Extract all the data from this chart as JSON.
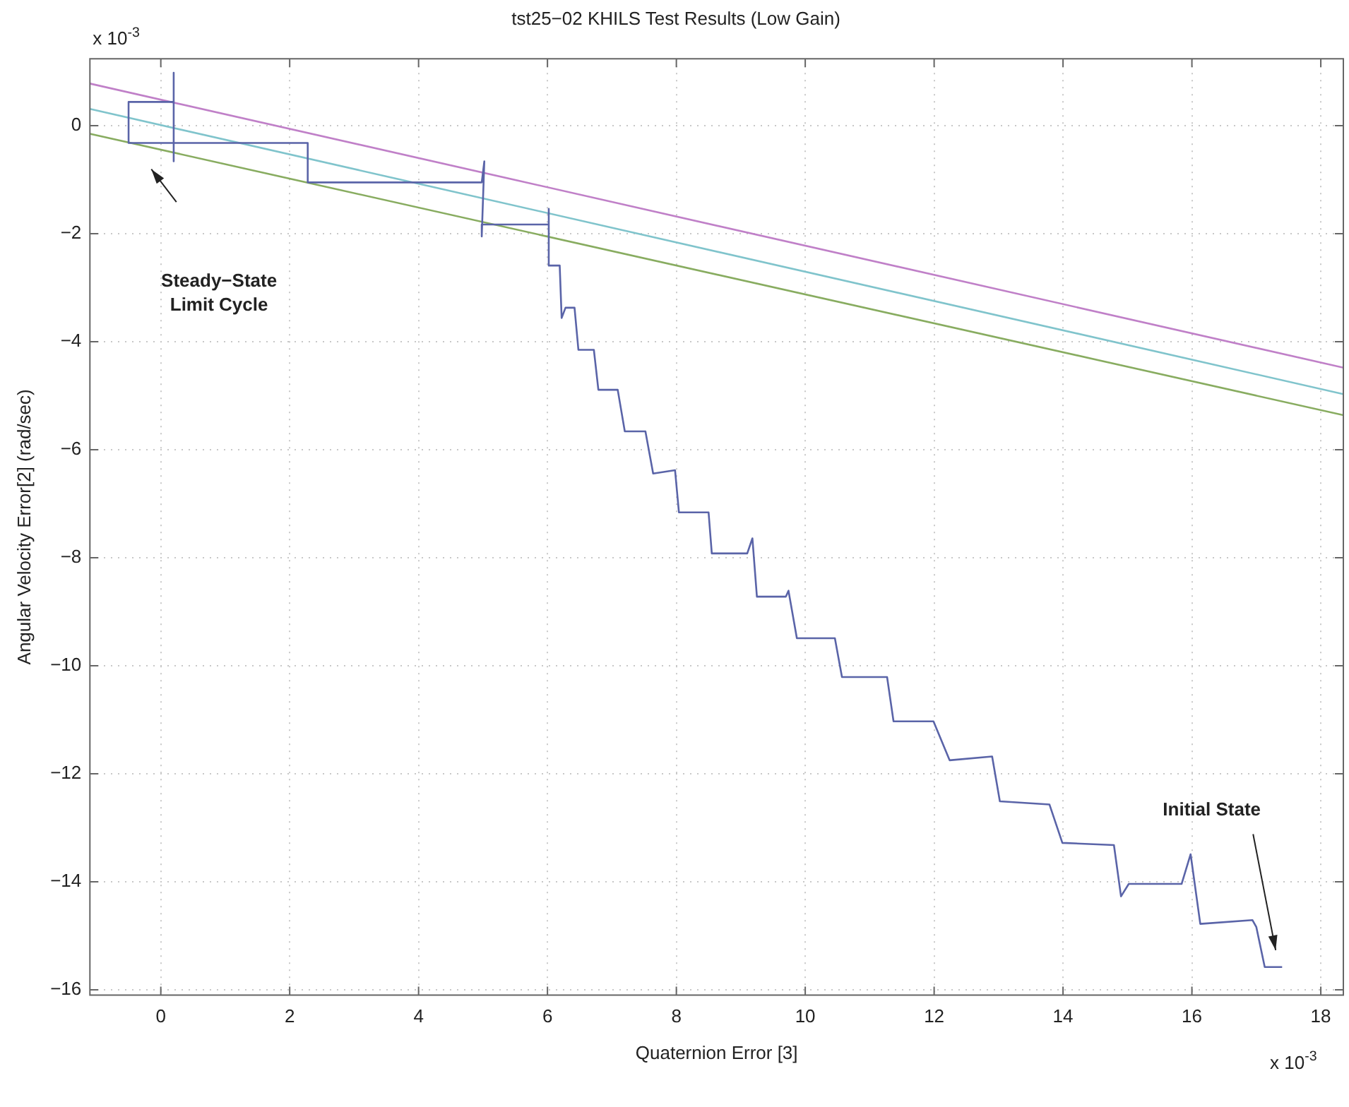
{
  "chart_data": {
    "type": "line",
    "title": "tst25−02 KHILS Test Results (Low Gain)",
    "xlabel": "Quaternion Error [3]",
    "ylabel": "Angular Velocity Error[2] (rad/sec)",
    "xlim": [
      -1.1,
      18.35
    ],
    "ylim": [
      -16.1,
      1.24
    ],
    "xticks": [
      0,
      2,
      4,
      6,
      8,
      10,
      12,
      14,
      16,
      18
    ],
    "yticks": [
      -16,
      -14,
      -12,
      -10,
      -8,
      -6,
      -4,
      -2,
      0
    ],
    "grid": true,
    "legend": false,
    "marker": "none",
    "line_style": "solid",
    "annotations": [
      "x 10$^{-3}$",
      "x 10$^{-3}$",
      "Steady−State\nLimit Cycle",
      "Initial State"
    ],
    "series": [
      {
        "color": "#5a64a8",
        "x": [
          17.4,
          17.13,
          17.0,
          16.94,
          16.13,
          15.98,
          15.84,
          15.02,
          14.9,
          14.79,
          13.99,
          13.79,
          13.02,
          12.9,
          12.24,
          11.99,
          11.37,
          11.27,
          10.57,
          10.46,
          9.87,
          9.74,
          9.7,
          9.25,
          9.18,
          9.1,
          8.63,
          8.55,
          8.5,
          8.04,
          7.98,
          7.64,
          7.52,
          7.2,
          7.09,
          6.79,
          6.72,
          6.48,
          6.42,
          6.28,
          6.22,
          6.19,
          6.02,
          6.02,
          6.02,
          4.98,
          4.98,
          5.02,
          4.98,
          4.87,
          2.28,
          2.28,
          -0.5,
          -0.5,
          0.2,
          0.2,
          0.2,
          0.2,
          -0.5
        ],
        "values": [
          -15.58,
          -15.58,
          -14.84,
          -14.71,
          -14.78,
          -13.49,
          -14.04,
          -14.04,
          -14.27,
          -13.32,
          -13.28,
          -12.57,
          -12.51,
          -11.68,
          -11.75,
          -11.03,
          -11.03,
          -10.21,
          -10.21,
          -9.49,
          -9.49,
          -8.61,
          -8.72,
          -8.72,
          -7.64,
          -7.92,
          -7.92,
          -7.92,
          -7.16,
          -7.16,
          -6.38,
          -6.44,
          -5.66,
          -5.66,
          -4.89,
          -4.89,
          -4.15,
          -4.15,
          -3.37,
          -3.37,
          -3.56,
          -2.59,
          -2.59,
          -1.54,
          -1.83,
          -1.83,
          -2.05,
          -0.66,
          -1.05,
          -1.05,
          -1.05,
          -0.32,
          -0.32,
          0.44,
          0.44,
          0.98,
          -0.66,
          -0.32,
          -0.32
        ]
      },
      {
        "color": "#c080c8",
        "x": [
          -1.1,
          18.35
        ],
        "values": [
          0.78,
          -4.48
        ]
      },
      {
        "color": "#80c4cc",
        "x": [
          -1.1,
          18.35
        ],
        "values": [
          0.31,
          -4.97
        ]
      },
      {
        "color": "#88ac60",
        "x": [
          -1.1,
          18.35
        ],
        "values": [
          -0.15,
          -5.36
        ]
      }
    ]
  }
}
